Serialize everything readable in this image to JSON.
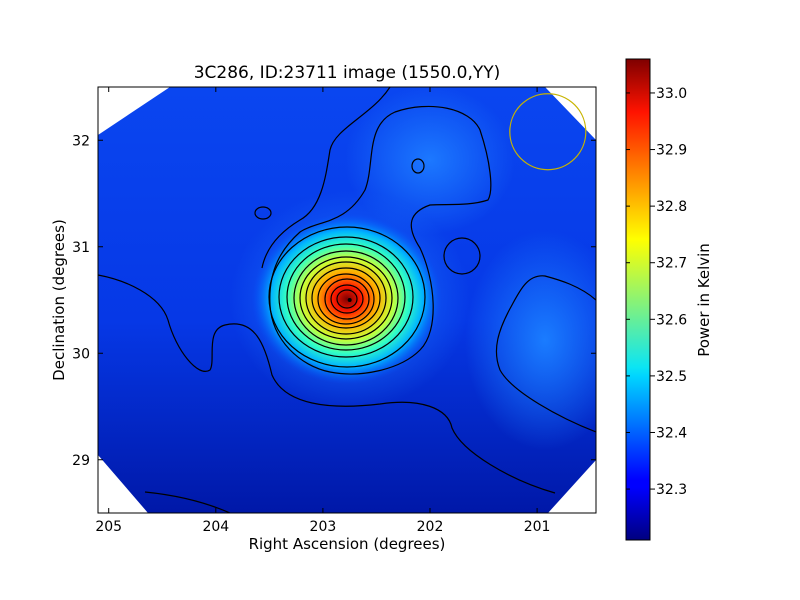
{
  "chart_data": {
    "type": "heatmap",
    "title": "3C286, ID:23711 image (1550.0,YY)",
    "xlabel": "Right Ascension (degrees)",
    "ylabel": "Declination (degrees)",
    "xlim": [
      205.1,
      200.45
    ],
    "ylim": [
      28.5,
      32.5
    ],
    "x_ticks": [
      205,
      204,
      203,
      202,
      201
    ],
    "y_ticks": [
      29,
      30,
      31,
      32
    ],
    "x_tick_labels": [
      "205",
      "204",
      "203",
      "202",
      "201"
    ],
    "y_tick_labels": [
      "29",
      "30",
      "31",
      "32"
    ],
    "colormap": "jet",
    "colorbar": {
      "label": "Power in Kelvin",
      "range": [
        32.21,
        33.06
      ],
      "ticks": [
        32.3,
        32.4,
        32.5,
        32.6,
        32.7,
        32.8,
        32.9,
        33.0
      ],
      "tick_labels": [
        "32.3",
        "32.4",
        "32.5",
        "32.6",
        "32.7",
        "32.8",
        "32.9",
        "33.0"
      ]
    },
    "peak": {
      "ra": 202.75,
      "dec": 30.5,
      "value": 33.06
    },
    "contour_color": "#000000",
    "beam_circle": {
      "ra": 200.9,
      "dec": 32.08,
      "color": "#c8b400"
    },
    "grid": false
  }
}
